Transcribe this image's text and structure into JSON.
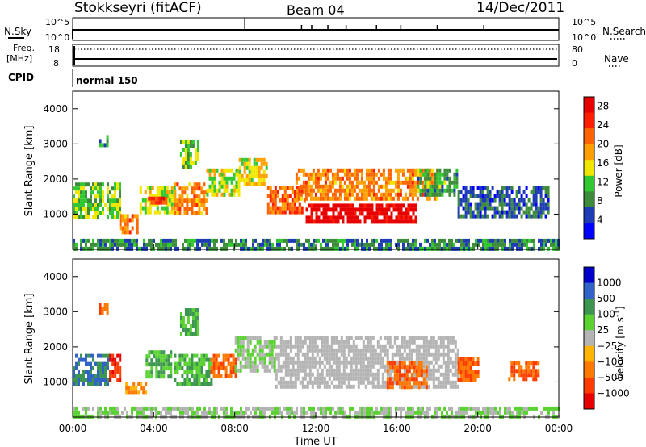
{
  "header": {
    "station": "Stokkseyri (fitACF)",
    "beam": "Beam 04",
    "date": "14/Dec/2011"
  },
  "strip_labels": {
    "nsky": "N.Sky",
    "nsky_ticks": [
      "10^5",
      "10^0"
    ],
    "nsearch": "N.Search",
    "nsearch_ticks": [
      "10^5",
      "10^0"
    ],
    "freq": "Freq.",
    "freq_unit": "[MHz]",
    "freq_ticks": [
      "18",
      "8"
    ],
    "nave": "Nave",
    "nave_ticks": [
      "80",
      "0"
    ],
    "cpid": "CPID",
    "cpid_value": "normal 150"
  },
  "colors": {
    "power": [
      "#0000ff",
      "#1e3cb4",
      "#3c8c3c",
      "#32c832",
      "#f0e600",
      "#ffa000",
      "#ff6400",
      "#ff1e00",
      "#e60000"
    ],
    "velocity": [
      "#0000c8",
      "#3264c8",
      "#3c9650",
      "#5ad232",
      "#b4b4b4",
      "#ffb400",
      "#ff7800",
      "#ff3c00",
      "#e60000"
    ]
  },
  "chart_data": [
    {
      "type": "heatmap",
      "name": "power",
      "ylabel": "Slant Range [km]",
      "yticks": [
        "1000",
        "2000",
        "3000",
        "4000"
      ],
      "ylim": [
        0,
        4500
      ],
      "colorbar_label": "Power [dB]",
      "colorbar_ticks": [
        "4",
        "8",
        "12",
        "16",
        "20",
        "24",
        "28"
      ],
      "colorbar_range": [
        0,
        30
      ],
      "regions": [
        {
          "t": [
            0.0,
            2.3
          ],
          "r": [
            900,
            1900
          ],
          "level": 12
        },
        {
          "t": [
            1.3,
            1.7
          ],
          "r": [
            2950,
            3250
          ],
          "level": 10
        },
        {
          "t": [
            2.3,
            3.2
          ],
          "r": [
            500,
            1000
          ],
          "level": 20
        },
        {
          "t": [
            3.3,
            5.0
          ],
          "r": [
            1100,
            1800
          ],
          "level": 14
        },
        {
          "t": [
            3.6,
            4.6
          ],
          "r": [
            1300,
            1500
          ],
          "level": 24
        },
        {
          "t": [
            5.0,
            6.6
          ],
          "r": [
            1000,
            1900
          ],
          "level": 20
        },
        {
          "t": [
            5.3,
            6.2
          ],
          "r": [
            2400,
            3100
          ],
          "level": 12
        },
        {
          "t": [
            6.6,
            8.2
          ],
          "r": [
            1600,
            2300
          ],
          "level": 14
        },
        {
          "t": [
            8.2,
            9.6
          ],
          "r": [
            1900,
            2600
          ],
          "level": 16
        },
        {
          "t": [
            9.6,
            11.5
          ],
          "r": [
            1000,
            1800
          ],
          "level": 22
        },
        {
          "t": [
            11.0,
            18.0
          ],
          "r": [
            1400,
            2300
          ],
          "level": 20
        },
        {
          "t": [
            11.5,
            17.0
          ],
          "r": [
            800,
            1300
          ],
          "level": 30
        },
        {
          "t": [
            17.0,
            19.0
          ],
          "r": [
            1500,
            2300
          ],
          "level": 10
        },
        {
          "t": [
            19.0,
            23.5
          ],
          "r": [
            900,
            1800
          ],
          "level": 6
        },
        {
          "t": [
            0.0,
            24.0
          ],
          "r": [
            0,
            300
          ],
          "level": 8
        }
      ]
    },
    {
      "type": "heatmap",
      "name": "velocity",
      "ylabel": "Slant Range [km]",
      "yticks": [
        "1000",
        "2000",
        "3000",
        "4000"
      ],
      "ylim": [
        0,
        4500
      ],
      "xlabel": "Time UT",
      "xticks": [
        "00:00",
        "04:00",
        "08:00",
        "12:00",
        "16:00",
        "20:00",
        "00:00"
      ],
      "xlim": [
        0,
        24
      ],
      "colorbar_label": "Velocity [m s^-1]",
      "colorbar_ticks": [
        "1000",
        "500",
        "100",
        "25",
        "−25",
        "−100",
        "−500",
        "−1000"
      ],
      "regions": [
        {
          "t": [
            0.0,
            1.8
          ],
          "r": [
            900,
            1800
          ],
          "level": 500
        },
        {
          "t": [
            1.8,
            2.3
          ],
          "r": [
            1000,
            1800
          ],
          "level": -1000
        },
        {
          "t": [
            1.3,
            1.7
          ],
          "r": [
            2950,
            3250
          ],
          "level": -500
        },
        {
          "t": [
            2.6,
            3.6
          ],
          "r": [
            700,
            1000
          ],
          "level": -100
        },
        {
          "t": [
            3.6,
            4.8
          ],
          "r": [
            1100,
            1900
          ],
          "level": 100
        },
        {
          "t": [
            5.0,
            6.8
          ],
          "r": [
            900,
            1800
          ],
          "level": 100
        },
        {
          "t": [
            5.3,
            6.2
          ],
          "r": [
            2400,
            3100
          ],
          "level": 100
        },
        {
          "t": [
            6.8,
            8.0
          ],
          "r": [
            1200,
            1800
          ],
          "level": -500
        },
        {
          "t": [
            8.0,
            10.0
          ],
          "r": [
            1300,
            2300
          ],
          "level": 25
        },
        {
          "t": [
            10.0,
            19.0
          ],
          "r": [
            900,
            2300
          ],
          "level": 0
        },
        {
          "t": [
            15.5,
            17.5
          ],
          "r": [
            900,
            1600
          ],
          "level": -500
        },
        {
          "t": [
            19.0,
            20.0
          ],
          "r": [
            1100,
            1700
          ],
          "level": -500
        },
        {
          "t": [
            21.5,
            23.0
          ],
          "r": [
            1100,
            1600
          ],
          "level": -500
        },
        {
          "t": [
            0.0,
            24.0
          ],
          "r": [
            0,
            300
          ],
          "level": 25
        }
      ]
    }
  ]
}
